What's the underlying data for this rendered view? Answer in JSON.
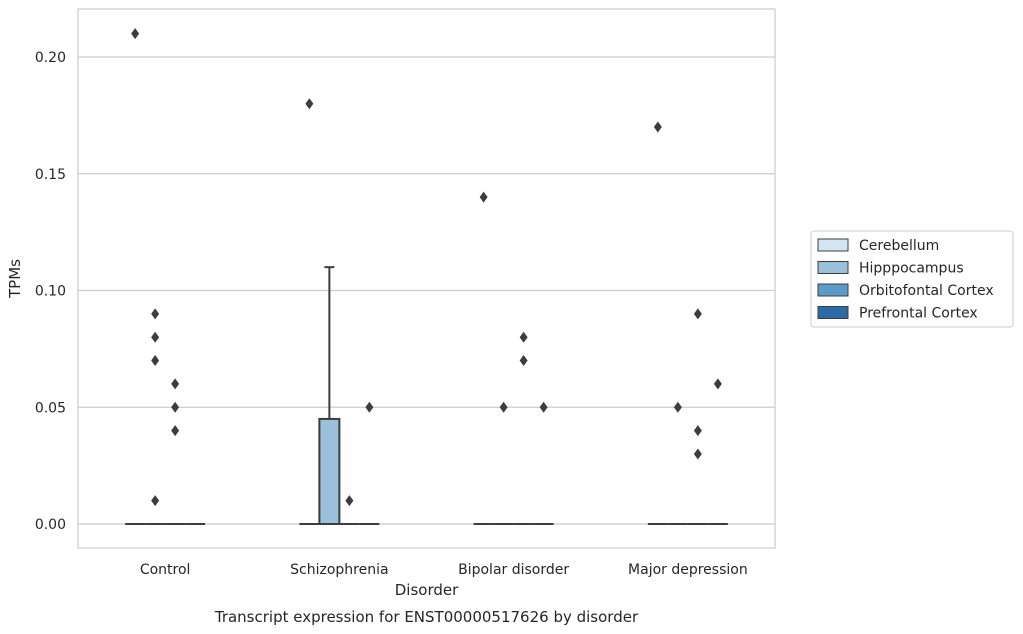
{
  "chart_data": {
    "type": "box",
    "title": "Transcript expression for ENST00000517626 by disorder",
    "xlabel": "Disorder",
    "ylabel": "TPMs",
    "ylim": [
      -0.01,
      0.22
    ],
    "yticks": [
      0.0,
      0.05,
      0.1,
      0.15,
      0.2
    ],
    "ytick_labels": [
      "0.00",
      "0.05",
      "0.10",
      "0.15",
      "0.20"
    ],
    "grid": true,
    "legend_position": "right",
    "categories": [
      "Control",
      "Schizophrenia",
      "Bipolar disorder",
      "Major depression"
    ],
    "series": [
      {
        "name": "Cerebellum",
        "color": "#d3e4f3",
        "boxes": [
          {
            "q1": 0,
            "median": 0,
            "q3": 0,
            "whisker_low": 0,
            "whisker_high": 0,
            "outliers": [
              0.21
            ]
          },
          {
            "q1": 0,
            "median": 0,
            "q3": 0,
            "whisker_low": 0,
            "whisker_high": 0,
            "outliers": [
              0.18
            ]
          },
          {
            "q1": 0,
            "median": 0,
            "q3": 0,
            "whisker_low": 0,
            "whisker_high": 0,
            "outliers": [
              0.14
            ]
          },
          {
            "q1": 0,
            "median": 0,
            "q3": 0,
            "whisker_low": 0,
            "whisker_high": 0,
            "outliers": [
              0.17
            ]
          }
        ]
      },
      {
        "name": "Hipppocampus",
        "color": "#9ac0db",
        "boxes": [
          {
            "q1": 0,
            "median": 0,
            "q3": 0,
            "whisker_low": 0,
            "whisker_high": 0,
            "outliers": [
              0.09,
              0.08,
              0.07,
              0.01
            ]
          },
          {
            "q1": 0,
            "median": 0,
            "q3": 0.045,
            "whisker_low": 0,
            "whisker_high": 0.11,
            "outliers": []
          },
          {
            "q1": 0,
            "median": 0,
            "q3": 0,
            "whisker_low": 0,
            "whisker_high": 0,
            "outliers": [
              0.05
            ]
          },
          {
            "q1": 0,
            "median": 0,
            "q3": 0,
            "whisker_low": 0,
            "whisker_high": 0,
            "outliers": [
              0.05
            ]
          }
        ]
      },
      {
        "name": "Orbitofontal Cortex",
        "color": "#5a9bc7",
        "boxes": [
          {
            "q1": 0,
            "median": 0,
            "q3": 0,
            "whisker_low": 0,
            "whisker_high": 0,
            "outliers": [
              0.06,
              0.05,
              0.04
            ]
          },
          {
            "q1": 0,
            "median": 0,
            "q3": 0,
            "whisker_low": 0,
            "whisker_high": 0,
            "outliers": [
              0.01
            ]
          },
          {
            "q1": 0,
            "median": 0,
            "q3": 0,
            "whisker_low": 0,
            "whisker_high": 0,
            "outliers": [
              0.08,
              0.07
            ]
          },
          {
            "q1": 0,
            "median": 0,
            "q3": 0,
            "whisker_low": 0,
            "whisker_high": 0,
            "outliers": [
              0.09,
              0.04,
              0.03
            ]
          }
        ]
      },
      {
        "name": "Prefrontal Cortex",
        "color": "#2c6ba6",
        "boxes": [
          {
            "q1": 0,
            "median": 0,
            "q3": 0,
            "whisker_low": 0,
            "whisker_high": 0,
            "outliers": []
          },
          {
            "q1": 0,
            "median": 0,
            "q3": 0,
            "whisker_low": 0,
            "whisker_high": 0,
            "outliers": [
              0.05
            ]
          },
          {
            "q1": 0,
            "median": 0,
            "q3": 0,
            "whisker_low": 0,
            "whisker_high": 0,
            "outliers": [
              0.05
            ]
          },
          {
            "q1": 0,
            "median": 0,
            "q3": 0,
            "whisker_low": 0,
            "whisker_high": 0,
            "outliers": [
              0.06
            ]
          }
        ]
      }
    ]
  }
}
